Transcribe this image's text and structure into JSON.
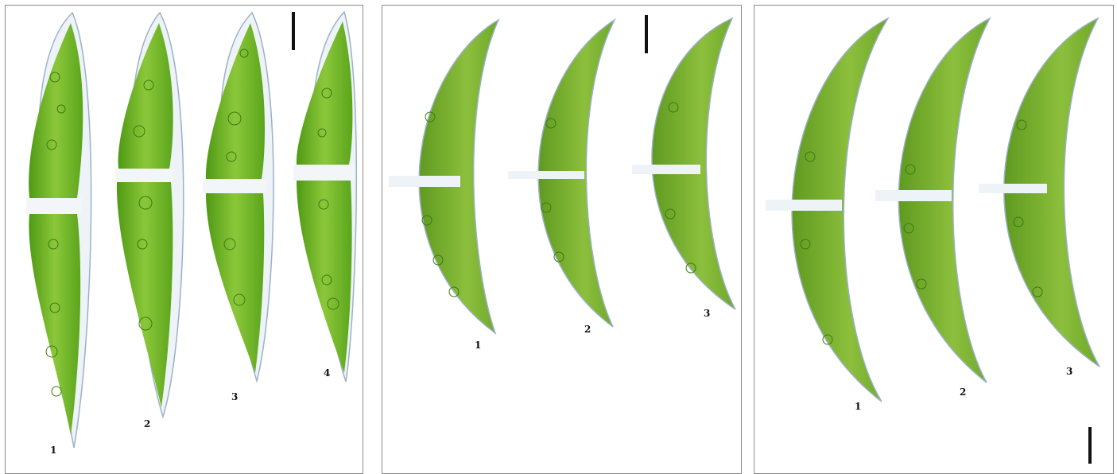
{
  "panels": [
    {
      "id": "panel-1",
      "cell_shape": "fusiform",
      "cell_labels": [
        "1",
        "2",
        "3",
        "4"
      ]
    },
    {
      "id": "panel-2",
      "cell_shape": "lunate",
      "cell_labels": [
        "1",
        "2",
        "3"
      ]
    },
    {
      "id": "panel-3",
      "cell_shape": "arcuate",
      "cell_labels": [
        "1",
        "2",
        "3"
      ]
    }
  ],
  "colors": {
    "chloroplast_dark": "#4f9a14",
    "chloroplast_light": "#8cc73a",
    "cell_wall": "#9cb1c6",
    "background": "#ffffff",
    "panel_border": "#8a8a8a",
    "scale_bar": "#111111"
  }
}
